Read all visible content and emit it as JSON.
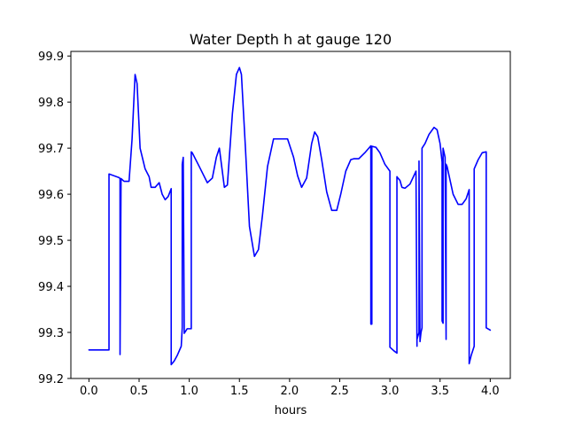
{
  "chart_data": {
    "type": "line",
    "title": "Water Depth h at gauge 120",
    "xlabel": "hours",
    "ylabel": "",
    "xlim": [
      -0.18,
      4.2
    ],
    "ylim": [
      99.2,
      99.91
    ],
    "xticks": [
      0.0,
      0.5,
      1.0,
      1.5,
      2.0,
      2.5,
      3.0,
      3.5,
      4.0
    ],
    "xtick_labels": [
      "0.0",
      "0.5",
      "1.0",
      "1.5",
      "2.0",
      "2.5",
      "3.0",
      "3.5",
      "4.0"
    ],
    "yticks": [
      99.2,
      99.3,
      99.4,
      99.5,
      99.6,
      99.7,
      99.8,
      99.9
    ],
    "ytick_labels": [
      "99.2",
      "99.3",
      "99.4",
      "99.5",
      "99.6",
      "99.7",
      "99.8",
      "99.9"
    ],
    "grid": false,
    "legend": false,
    "series": [
      {
        "color": "#0000ff",
        "x": [
          0.0,
          0.2,
          0.2,
          0.3,
          0.31,
          0.31,
          0.32,
          0.32,
          0.35,
          0.4,
          0.43,
          0.46,
          0.48,
          0.51,
          0.56,
          0.6,
          0.62,
          0.66,
          0.7,
          0.73,
          0.76,
          0.79,
          0.82,
          0.82,
          0.85,
          0.88,
          0.92,
          0.93,
          0.93,
          0.94,
          0.95,
          0.95,
          0.98,
          1.02,
          1.02,
          1.03,
          1.1,
          1.18,
          1.23,
          1.27,
          1.3,
          1.35,
          1.38,
          1.43,
          1.47,
          1.5,
          1.52,
          1.56,
          1.6,
          1.65,
          1.69,
          1.73,
          1.78,
          1.84,
          1.88,
          1.93,
          1.98,
          2.04,
          2.08,
          2.12,
          2.17,
          2.22,
          2.25,
          2.28,
          2.32,
          2.37,
          2.42,
          2.47,
          2.51,
          2.56,
          2.61,
          2.64,
          2.69,
          2.75,
          2.79,
          2.81,
          2.81,
          2.82,
          2.82,
          2.86,
          2.9,
          2.95,
          3.0,
          3.0,
          3.04,
          3.07,
          3.07,
          3.08,
          3.1,
          3.12,
          3.15,
          3.2,
          3.26,
          3.27,
          3.27,
          3.29,
          3.29,
          3.3,
          3.31,
          3.32,
          3.32,
          3.35,
          3.39,
          3.44,
          3.47,
          3.5,
          3.52,
          3.52,
          3.53,
          3.53,
          3.55,
          3.56,
          3.56,
          3.57,
          3.59,
          3.63,
          3.68,
          3.72,
          3.76,
          3.79,
          3.79,
          3.81,
          3.84,
          3.84,
          3.88,
          3.92,
          3.96,
          3.96,
          4.0
        ],
        "y": [
          99.262,
          99.262,
          99.644,
          99.636,
          99.634,
          99.252,
          99.634,
          99.634,
          99.628,
          99.628,
          99.72,
          99.86,
          99.84,
          99.7,
          99.655,
          99.638,
          99.615,
          99.615,
          99.625,
          99.6,
          99.588,
          99.595,
          99.612,
          99.23,
          99.238,
          99.25,
          99.27,
          99.31,
          99.665,
          99.68,
          99.298,
          99.298,
          99.308,
          99.308,
          99.692,
          99.69,
          99.66,
          99.625,
          99.635,
          99.68,
          99.7,
          99.615,
          99.62,
          99.775,
          99.86,
          99.875,
          99.86,
          99.7,
          99.53,
          99.465,
          99.48,
          99.555,
          99.66,
          99.72,
          99.72,
          99.72,
          99.72,
          99.68,
          99.64,
          99.615,
          99.635,
          99.71,
          99.735,
          99.725,
          99.675,
          99.605,
          99.565,
          99.565,
          99.6,
          99.65,
          99.675,
          99.677,
          99.677,
          99.69,
          99.7,
          99.705,
          99.318,
          99.318,
          99.704,
          99.702,
          99.69,
          99.665,
          99.65,
          99.268,
          99.26,
          99.255,
          99.638,
          99.635,
          99.63,
          99.615,
          99.613,
          99.622,
          99.65,
          99.27,
          99.285,
          99.3,
          99.672,
          99.28,
          99.3,
          99.31,
          99.7,
          99.71,
          99.73,
          99.745,
          99.74,
          99.71,
          99.67,
          99.325,
          99.32,
          99.7,
          99.68,
          99.285,
          99.665,
          99.66,
          99.64,
          99.6,
          99.578,
          99.578,
          99.59,
          99.61,
          99.232,
          99.25,
          99.27,
          99.655,
          99.675,
          99.69,
          99.692,
          99.31,
          99.305
        ]
      }
    ]
  }
}
